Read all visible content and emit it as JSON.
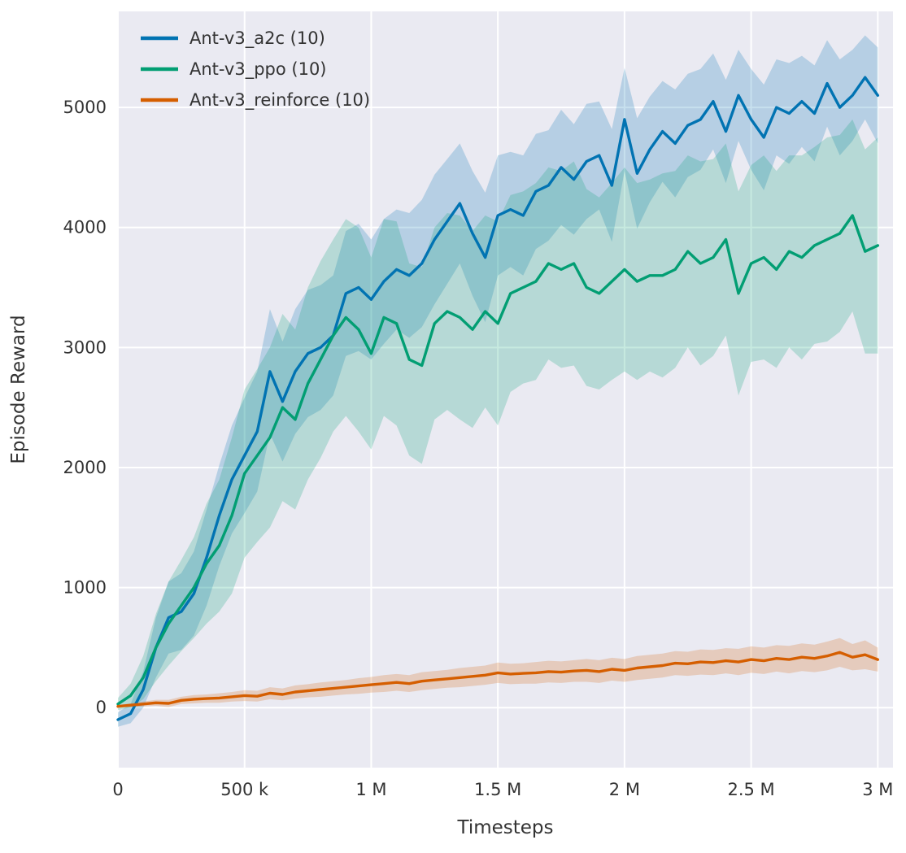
{
  "chart_data": {
    "type": "line",
    "title": "",
    "xlabel": "Timesteps",
    "ylabel": "Episode Reward",
    "x_unit": "thousand timesteps",
    "xlim_k": [
      0,
      3060
    ],
    "ylim": [
      -500,
      5800
    ],
    "x_ticks_k": [
      0,
      500,
      1000,
      1500,
      2000,
      2500,
      3000
    ],
    "x_tick_labels": [
      "0",
      "500 k",
      "1 M",
      "1.5 M",
      "2 M",
      "2.5 M",
      "3 M"
    ],
    "y_ticks": [
      0,
      1000,
      2000,
      3000,
      4000,
      5000
    ],
    "grid": true,
    "legend_position": "upper left",
    "background": "#eaeaf2",
    "gridline_color": "#ffffff",
    "text_color": "#333333",
    "band_opacity": 0.22,
    "x_k": [
      0,
      50,
      100,
      150,
      200,
      250,
      300,
      350,
      400,
      450,
      500,
      550,
      600,
      650,
      700,
      750,
      800,
      850,
      900,
      950,
      1000,
      1050,
      1100,
      1150,
      1200,
      1250,
      1300,
      1350,
      1400,
      1450,
      1500,
      1550,
      1600,
      1650,
      1700,
      1750,
      1800,
      1850,
      1900,
      1950,
      2000,
      2050,
      2100,
      2150,
      2200,
      2250,
      2300,
      2350,
      2400,
      2450,
      2500,
      2550,
      2600,
      2650,
      2700,
      2750,
      2800,
      2850,
      2900,
      2950,
      3000
    ],
    "series": [
      {
        "id": "a2c",
        "name": "Ant-v3_a2c (10)",
        "color": "#0173b2",
        "mean": [
          -100,
          -50,
          150,
          500,
          750,
          800,
          950,
          1250,
          1600,
          1900,
          2100,
          2300,
          2800,
          2550,
          2800,
          2950,
          3000,
          3100,
          3450,
          3500,
          3400,
          3550,
          3650,
          3600,
          3700,
          3900,
          4050,
          4200,
          3950,
          3750,
          4100,
          4150,
          4100,
          4300,
          4350,
          4500,
          4400,
          4550,
          4600,
          4350,
          4900,
          4450,
          4650,
          4800,
          4700,
          4850,
          4900,
          5050,
          4800,
          5100,
          4900,
          4750,
          5000,
          4950,
          5050,
          4950,
          5200,
          5000,
          5100,
          5250,
          5100
        ],
        "spread": [
          60,
          80,
          150,
          250,
          300,
          320,
          350,
          400,
          420,
          450,
          480,
          500,
          520,
          500,
          520,
          530,
          520,
          500,
          520,
          530,
          500,
          520,
          500,
          520,
          530,
          540,
          520,
          500,
          520,
          540,
          500,
          480,
          500,
          480,
          460,
          480,
          460,
          480,
          450,
          470,
          430,
          460,
          440,
          420,
          450,
          430,
          420,
          400,
          430,
          380,
          420,
          440,
          400,
          420,
          380,
          400,
          360,
          400,
          380,
          350,
          400
        ]
      },
      {
        "id": "ppo",
        "name": "Ant-v3_ppo (10)",
        "color": "#029e73",
        "mean": [
          30,
          100,
          250,
          500,
          700,
          850,
          1000,
          1200,
          1350,
          1600,
          1950,
          2100,
          2250,
          2500,
          2400,
          2700,
          2900,
          3100,
          3250,
          3150,
          2950,
          3250,
          3200,
          2900,
          2850,
          3200,
          3300,
          3250,
          3150,
          3300,
          3200,
          3450,
          3500,
          3550,
          3700,
          3650,
          3700,
          3500,
          3450,
          3550,
          3650,
          3550,
          3600,
          3600,
          3650,
          3800,
          3700,
          3750,
          3900,
          3450,
          3700,
          3750,
          3650,
          3800,
          3750,
          3850,
          3900,
          3950,
          4100,
          3800,
          3850
        ],
        "spread": [
          50,
          100,
          180,
          280,
          350,
          380,
          420,
          500,
          550,
          650,
          700,
          720,
          750,
          780,
          750,
          800,
          820,
          800,
          820,
          850,
          800,
          820,
          850,
          800,
          820,
          800,
          820,
          850,
          820,
          800,
          850,
          820,
          800,
          820,
          800,
          820,
          850,
          820,
          800,
          820,
          850,
          820,
          800,
          850,
          820,
          800,
          850,
          820,
          800,
          850,
          820,
          850,
          820,
          800,
          850,
          820,
          850,
          820,
          800,
          850,
          900
        ]
      },
      {
        "id": "reinforce",
        "name": "Ant-v3_reinforce (10)",
        "color": "#d55e00",
        "mean": [
          10,
          20,
          30,
          40,
          35,
          60,
          70,
          75,
          80,
          90,
          100,
          95,
          120,
          110,
          130,
          140,
          150,
          160,
          170,
          180,
          190,
          200,
          210,
          200,
          220,
          230,
          240,
          250,
          260,
          270,
          290,
          280,
          285,
          290,
          300,
          295,
          305,
          310,
          300,
          320,
          310,
          330,
          340,
          350,
          370,
          365,
          380,
          375,
          390,
          380,
          400,
          390,
          410,
          400,
          420,
          410,
          430,
          460,
          420,
          440,
          400
        ],
        "spread": [
          10,
          15,
          20,
          25,
          30,
          30,
          35,
          35,
          40,
          40,
          45,
          45,
          50,
          50,
          55,
          55,
          60,
          60,
          60,
          65,
          65,
          70,
          70,
          70,
          75,
          75,
          75,
          80,
          80,
          80,
          85,
          85,
          85,
          90,
          90,
          90,
          90,
          95,
          95,
          95,
          95,
          100,
          100,
          100,
          100,
          100,
          105,
          105,
          105,
          110,
          110,
          110,
          110,
          115,
          115,
          115,
          120,
          120,
          110,
          120,
          100
        ]
      }
    ]
  }
}
